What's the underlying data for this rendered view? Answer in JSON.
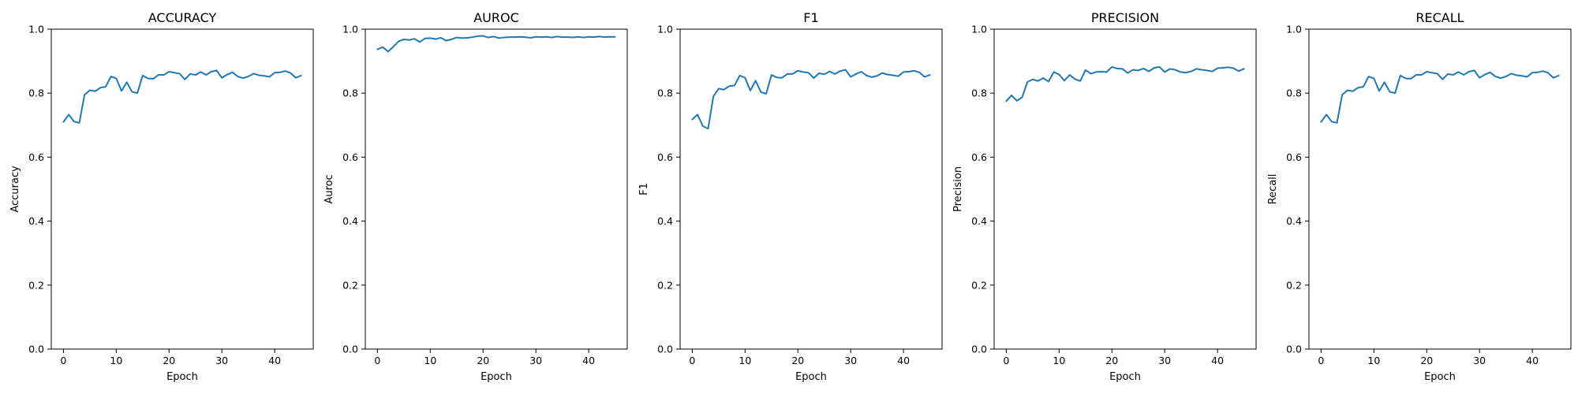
{
  "chart_data": [
    {
      "type": "line",
      "title": "ACCURACY",
      "xlabel": "Epoch",
      "ylabel": "Accuracy",
      "xlim": [
        -2.3,
        47.3
      ],
      "ylim": [
        0.0,
        1.0
      ],
      "xticks": [
        0,
        10,
        20,
        30,
        40
      ],
      "yticks": [
        0.0,
        0.2,
        0.4,
        0.6,
        0.8,
        1.0
      ],
      "grid": false,
      "color": "#1f77b4",
      "series": [
        {
          "x": [
            0,
            1,
            2,
            3,
            4,
            5,
            6,
            7,
            8,
            9,
            10,
            11,
            12,
            13,
            14,
            15,
            16,
            17,
            18,
            19,
            20,
            21,
            22,
            23,
            24,
            25,
            26,
            27,
            28,
            29,
            30,
            31,
            32,
            33,
            34,
            35,
            36,
            37,
            38,
            39,
            40,
            41,
            42,
            43,
            44,
            45
          ],
          "y": [
            0.71,
            0.733,
            0.711,
            0.707,
            0.795,
            0.809,
            0.806,
            0.817,
            0.82,
            0.852,
            0.846,
            0.807,
            0.834,
            0.804,
            0.8,
            0.855,
            0.846,
            0.845,
            0.857,
            0.857,
            0.867,
            0.864,
            0.861,
            0.843,
            0.86,
            0.857,
            0.866,
            0.857,
            0.867,
            0.871,
            0.848,
            0.858,
            0.865,
            0.852,
            0.847,
            0.852,
            0.861,
            0.856,
            0.854,
            0.851,
            0.864,
            0.865,
            0.869,
            0.863,
            0.848,
            0.855
          ]
        }
      ]
    },
    {
      "type": "line",
      "title": "AUROC",
      "xlabel": "Epoch",
      "ylabel": "Auroc",
      "xlim": [
        -2.3,
        47.3
      ],
      "ylim": [
        0.0,
        1.0
      ],
      "xticks": [
        0,
        10,
        20,
        30,
        40
      ],
      "yticks": [
        0.0,
        0.2,
        0.4,
        0.6,
        0.8,
        1.0
      ],
      "grid": false,
      "color": "#1f77b4",
      "series": [
        {
          "x": [
            0,
            1,
            2,
            3,
            4,
            5,
            6,
            7,
            8,
            9,
            10,
            11,
            12,
            13,
            14,
            15,
            16,
            17,
            18,
            19,
            20,
            21,
            22,
            23,
            24,
            25,
            26,
            27,
            28,
            29,
            30,
            31,
            32,
            33,
            34,
            35,
            36,
            37,
            38,
            39,
            40,
            41,
            42,
            43,
            44,
            45
          ],
          "y": [
            0.937,
            0.944,
            0.93,
            0.945,
            0.962,
            0.968,
            0.966,
            0.97,
            0.96,
            0.971,
            0.972,
            0.969,
            0.973,
            0.964,
            0.968,
            0.974,
            0.972,
            0.973,
            0.975,
            0.978,
            0.979,
            0.974,
            0.977,
            0.972,
            0.974,
            0.975,
            0.975,
            0.976,
            0.975,
            0.973,
            0.976,
            0.975,
            0.976,
            0.974,
            0.977,
            0.975,
            0.975,
            0.974,
            0.976,
            0.974,
            0.976,
            0.975,
            0.977,
            0.975,
            0.976,
            0.976
          ]
        }
      ]
    },
    {
      "type": "line",
      "title": "F1",
      "xlabel": "Epoch",
      "ylabel": "F1",
      "xlim": [
        -2.3,
        47.3
      ],
      "ylim": [
        0.0,
        1.0
      ],
      "xticks": [
        0,
        10,
        20,
        30,
        40
      ],
      "yticks": [
        0.0,
        0.2,
        0.4,
        0.6,
        0.8,
        1.0
      ],
      "grid": false,
      "color": "#1f77b4",
      "series": [
        {
          "x": [
            0,
            1,
            2,
            3,
            4,
            5,
            6,
            7,
            8,
            9,
            10,
            11,
            12,
            13,
            14,
            15,
            16,
            17,
            18,
            19,
            20,
            21,
            22,
            23,
            24,
            25,
            26,
            27,
            28,
            29,
            30,
            31,
            32,
            33,
            34,
            35,
            36,
            37,
            38,
            39,
            40,
            41,
            42,
            43,
            44,
            45
          ],
          "y": [
            0.718,
            0.733,
            0.697,
            0.689,
            0.79,
            0.814,
            0.811,
            0.822,
            0.824,
            0.855,
            0.848,
            0.808,
            0.839,
            0.803,
            0.798,
            0.857,
            0.849,
            0.848,
            0.86,
            0.86,
            0.87,
            0.866,
            0.864,
            0.847,
            0.862,
            0.859,
            0.868,
            0.86,
            0.869,
            0.873,
            0.851,
            0.86,
            0.867,
            0.855,
            0.85,
            0.854,
            0.863,
            0.858,
            0.856,
            0.853,
            0.866,
            0.867,
            0.87,
            0.865,
            0.851,
            0.857
          ]
        }
      ]
    },
    {
      "type": "line",
      "title": "PRECISION",
      "xlabel": "Epoch",
      "ylabel": "Precision",
      "xlim": [
        -2.3,
        47.3
      ],
      "ylim": [
        0.0,
        1.0
      ],
      "xticks": [
        0,
        10,
        20,
        30,
        40
      ],
      "yticks": [
        0.0,
        0.2,
        0.4,
        0.6,
        0.8,
        1.0
      ],
      "grid": false,
      "color": "#1f77b4",
      "series": [
        {
          "x": [
            0,
            1,
            2,
            3,
            4,
            5,
            6,
            7,
            8,
            9,
            10,
            11,
            12,
            13,
            14,
            15,
            16,
            17,
            18,
            19,
            20,
            21,
            22,
            23,
            24,
            25,
            26,
            27,
            28,
            29,
            30,
            31,
            32,
            33,
            34,
            35,
            36,
            37,
            38,
            39,
            40,
            41,
            42,
            43,
            44,
            45
          ],
          "y": [
            0.775,
            0.793,
            0.776,
            0.787,
            0.835,
            0.843,
            0.838,
            0.847,
            0.836,
            0.866,
            0.858,
            0.839,
            0.857,
            0.844,
            0.838,
            0.872,
            0.861,
            0.866,
            0.867,
            0.866,
            0.882,
            0.877,
            0.876,
            0.863,
            0.873,
            0.871,
            0.877,
            0.868,
            0.879,
            0.882,
            0.866,
            0.876,
            0.873,
            0.866,
            0.864,
            0.868,
            0.876,
            0.873,
            0.871,
            0.868,
            0.878,
            0.879,
            0.881,
            0.878,
            0.869,
            0.876
          ]
        }
      ]
    },
    {
      "type": "line",
      "title": "RECALL",
      "xlabel": "Epoch",
      "ylabel": "Recall",
      "xlim": [
        -2.3,
        47.3
      ],
      "ylim": [
        0.0,
        1.0
      ],
      "xticks": [
        0,
        10,
        20,
        30,
        40
      ],
      "yticks": [
        0.0,
        0.2,
        0.4,
        0.6,
        0.8,
        1.0
      ],
      "grid": false,
      "color": "#1f77b4",
      "series": [
        {
          "x": [
            0,
            1,
            2,
            3,
            4,
            5,
            6,
            7,
            8,
            9,
            10,
            11,
            12,
            13,
            14,
            15,
            16,
            17,
            18,
            19,
            20,
            21,
            22,
            23,
            24,
            25,
            26,
            27,
            28,
            29,
            30,
            31,
            32,
            33,
            34,
            35,
            36,
            37,
            38,
            39,
            40,
            41,
            42,
            43,
            44,
            45
          ],
          "y": [
            0.71,
            0.733,
            0.711,
            0.707,
            0.795,
            0.809,
            0.806,
            0.817,
            0.82,
            0.852,
            0.846,
            0.807,
            0.834,
            0.804,
            0.8,
            0.855,
            0.846,
            0.845,
            0.857,
            0.857,
            0.867,
            0.864,
            0.861,
            0.843,
            0.86,
            0.857,
            0.866,
            0.857,
            0.867,
            0.871,
            0.848,
            0.858,
            0.865,
            0.852,
            0.847,
            0.852,
            0.861,
            0.856,
            0.854,
            0.851,
            0.864,
            0.865,
            0.869,
            0.863,
            0.848,
            0.855
          ]
        }
      ]
    }
  ]
}
